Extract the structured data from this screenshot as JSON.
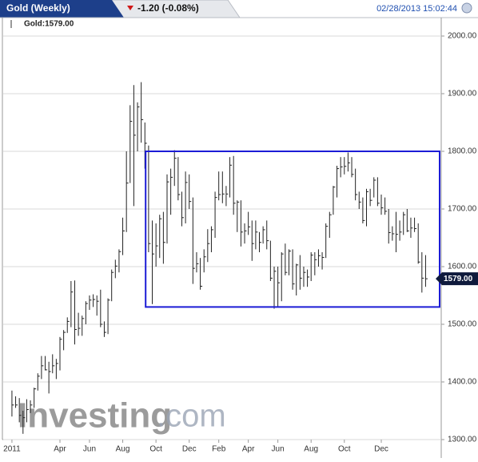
{
  "header": {
    "title": "Gold (Weekly)",
    "change": "-1.20 (-0.08%)",
    "timestamp": "02/28/2013 15:02:44"
  },
  "chart_data": {
    "type": "ohlc",
    "legend_label": "Gold:1579.00",
    "watermark": {
      "brand": "Investing",
      "suffix": ".com"
    },
    "series": [
      {
        "color": "#222222",
        "high": [
          1385,
          1375,
          1372,
          1350,
          1370,
          1368,
          1390,
          1415,
          1445,
          1445,
          1435,
          1448,
          1440,
          1478,
          1490,
          1512,
          1575,
          1576,
          1520,
          1515,
          1540,
          1550,
          1552,
          1550,
          1560,
          1505,
          1545,
          1595,
          1612,
          1630,
          1685,
          1800,
          1880,
          1915,
          1885,
          1920,
          1850,
          1810,
          1680,
          1675,
          1690,
          1695,
          1760,
          1770,
          1802,
          1790,
          1730,
          1765,
          1760,
          1720,
          1625,
          1615,
          1630,
          1665,
          1670,
          1730,
          1765,
          1765,
          1740,
          1790,
          1792,
          1715,
          1715,
          1675,
          1695,
          1680,
          1680,
          1660,
          1670,
          1680,
          1645,
          1600,
          1600,
          1625,
          1640,
          1630,
          1630,
          1605,
          1620,
          1600,
          1595,
          1625,
          1625,
          1630,
          1625,
          1675,
          1695,
          1740,
          1775,
          1790,
          1790,
          1798,
          1790,
          1770,
          1730,
          1720,
          1735,
          1735,
          1755,
          1755,
          1725,
          1720,
          1700,
          1670,
          1695,
          1680,
          1695,
          1700,
          1685,
          1685,
          1675,
          1625,
          1620
        ],
        "low": [
          1340,
          1355,
          1330,
          1310,
          1330,
          1346,
          1355,
          1385,
          1405,
          1420,
          1380,
          1415,
          1405,
          1420,
          1455,
          1485,
          1495,
          1465,
          1480,
          1480,
          1500,
          1525,
          1530,
          1515,
          1495,
          1478,
          1483,
          1540,
          1580,
          1590,
          1620,
          1660,
          1745,
          1705,
          1800,
          1815,
          1770,
          1625,
          1535,
          1600,
          1615,
          1605,
          1640,
          1690,
          1740,
          1715,
          1670,
          1675,
          1700,
          1570,
          1590,
          1560,
          1590,
          1608,
          1625,
          1650,
          1715,
          1710,
          1705,
          1720,
          1690,
          1660,
          1635,
          1640,
          1655,
          1610,
          1630,
          1625,
          1640,
          1630,
          1575,
          1527,
          1530,
          1540,
          1585,
          1585,
          1560,
          1550,
          1560,
          1565,
          1565,
          1575,
          1585,
          1600,
          1595,
          1615,
          1650,
          1690,
          1720,
          1755,
          1760,
          1765,
          1755,
          1715,
          1700,
          1675,
          1670,
          1705,
          1720,
          1705,
          1690,
          1690,
          1640,
          1645,
          1625,
          1645,
          1655,
          1660,
          1650,
          1660,
          1605,
          1555,
          1565
        ],
        "close": [
          1360,
          1360,
          1342,
          1338,
          1352,
          1360,
          1388,
          1410,
          1428,
          1421,
          1418,
          1428,
          1432,
          1474,
          1486,
          1505,
          1556,
          1491,
          1493,
          1510,
          1536,
          1542,
          1543,
          1540,
          1500,
          1486,
          1542,
          1590,
          1601,
          1626,
          1662,
          1745,
          1852,
          1828,
          1877,
          1855,
          1814,
          1640,
          1622,
          1636,
          1683,
          1642,
          1747,
          1755,
          1788,
          1725,
          1685,
          1746,
          1713,
          1597,
          1605,
          1566,
          1617,
          1640,
          1664,
          1720,
          1725,
          1726,
          1726,
          1776,
          1710,
          1712,
          1660,
          1662,
          1669,
          1640,
          1660,
          1642,
          1664,
          1645,
          1580,
          1592,
          1572,
          1622,
          1590,
          1627,
          1570,
          1603,
          1580,
          1590,
          1582,
          1620,
          1612,
          1619,
          1616,
          1670,
          1690,
          1738,
          1770,
          1773,
          1774,
          1780,
          1760,
          1725,
          1712,
          1680,
          1730,
          1715,
          1750,
          1710,
          1702,
          1696,
          1659,
          1657,
          1656,
          1660,
          1690,
          1662,
          1667,
          1666,
          1608,
          1580,
          1579
        ]
      }
    ],
    "xlim": [
      -1.5,
      115.8
    ],
    "xticks": [
      {
        "value": 0,
        "label": "2011"
      },
      {
        "value": 13,
        "label": "Apr"
      },
      {
        "value": 21,
        "label": "Jun"
      },
      {
        "value": 30,
        "label": "Aug"
      },
      {
        "value": 39,
        "label": "Oct"
      },
      {
        "value": 48,
        "label": "Dec"
      },
      {
        "value": 56,
        "label": "Feb"
      },
      {
        "value": 64,
        "label": "Apr"
      },
      {
        "value": 72,
        "label": "Jun"
      },
      {
        "value": 81,
        "label": "Aug"
      },
      {
        "value": 90,
        "label": "Oct"
      },
      {
        "value": 100,
        "label": "Dec"
      }
    ],
    "ylim": [
      1300,
      2000
    ],
    "yticks": [
      {
        "value": 1300,
        "label": "1300.00"
      },
      {
        "value": 1400,
        "label": "1400.00"
      },
      {
        "value": 1500,
        "label": "1500.00"
      },
      {
        "value": 1600,
        "label": "1600.00"
      },
      {
        "value": 1700,
        "label": "1700.00"
      },
      {
        "value": 1800,
        "label": "1800.00"
      },
      {
        "value": 1900,
        "label": "1900.00"
      },
      {
        "value": 2000,
        "label": "2000.00"
      }
    ],
    "grid": true,
    "last": {
      "value": 1579,
      "label": "1579.00",
      "color": "#0f1a3c"
    },
    "annotation_box": {
      "xlim": [
        36.2,
        115.8
      ],
      "ylim": [
        1530,
        1800
      ],
      "color": "#1c1cd6"
    }
  }
}
